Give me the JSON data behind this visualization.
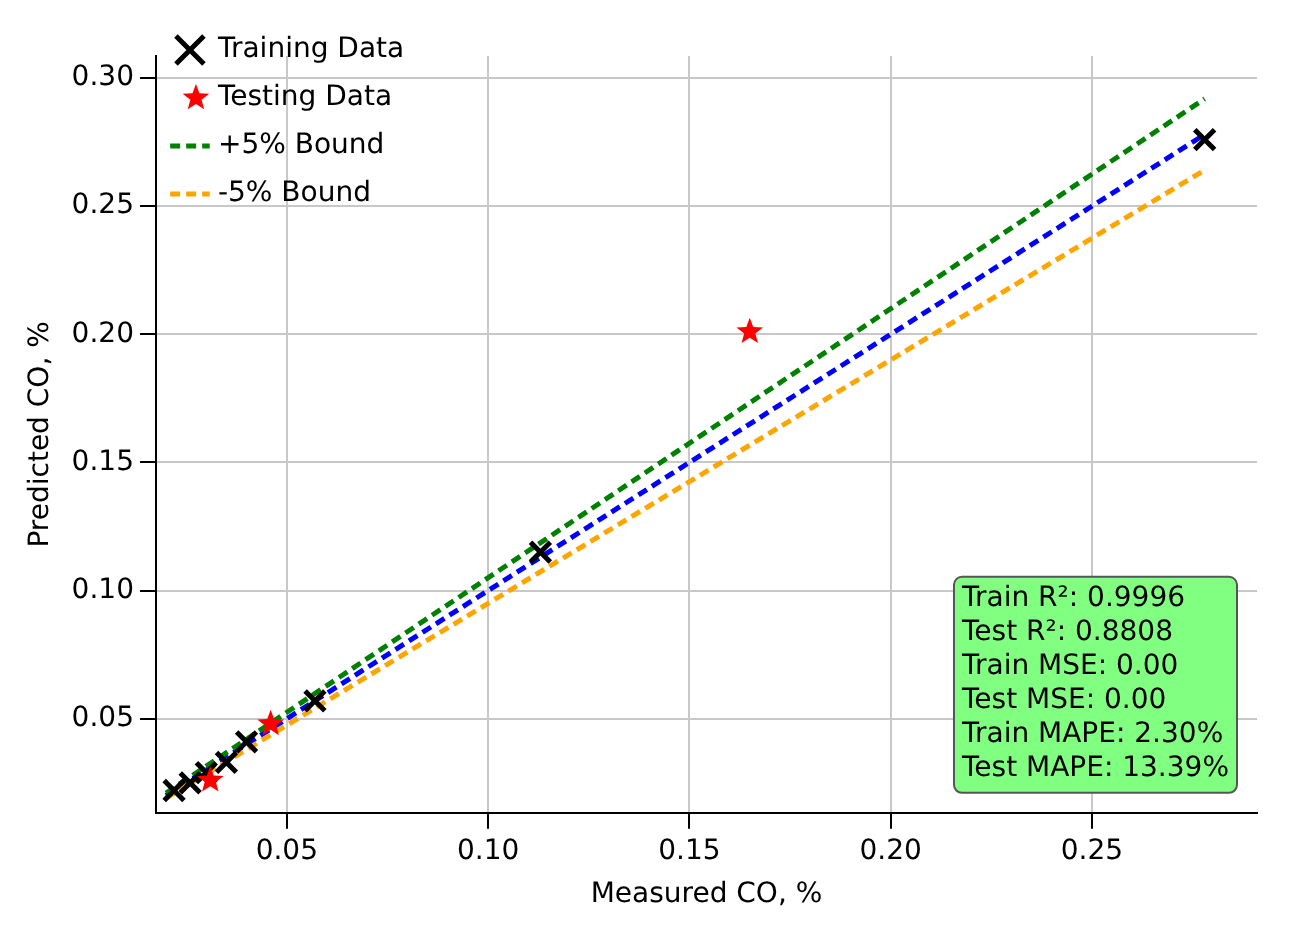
{
  "chart_data": {
    "type": "scatter",
    "xlabel": "Measured CO, %",
    "ylabel": "Predicted CO, %",
    "xlim": [
      0.0175,
      0.291
    ],
    "xticks": [
      {
        "value": 0.05,
        "label": "0.05"
      },
      {
        "value": 0.1,
        "label": "0.10"
      },
      {
        "value": 0.15,
        "label": "0.15"
      },
      {
        "value": 0.2,
        "label": "0.20"
      },
      {
        "value": 0.25,
        "label": "0.25"
      }
    ],
    "ylim": [
      0.0133,
      0.3086
    ],
    "yticks": [
      {
        "value": 0.05,
        "label": "0.05"
      },
      {
        "value": 0.1,
        "label": "0.10"
      },
      {
        "value": 0.15,
        "label": "0.15"
      },
      {
        "value": 0.2,
        "label": "0.20"
      },
      {
        "value": 0.25,
        "label": "0.25"
      },
      {
        "value": 0.3,
        "label": "0.30"
      }
    ],
    "grid": true,
    "legend": "top left",
    "series": [
      {
        "name": "Training Data",
        "color": "#000000",
        "marker": "cross",
        "x": [
          0.022,
          0.026,
          0.03,
          0.035,
          0.04,
          0.057,
          0.113,
          0.278
        ],
        "values": [
          0.022,
          0.025,
          0.029,
          0.033,
          0.041,
          0.057,
          0.115,
          0.276
        ]
      },
      {
        "name": "Testing Data",
        "color": "#ff0000",
        "marker": "star",
        "x": [
          0.031,
          0.046,
          0.165
        ],
        "values": [
          0.026,
          0.048,
          0.201
        ]
      },
      {
        "name": "+5% Bound",
        "type": "line",
        "color": "#008000",
        "line_style": "dashed",
        "marker": "none",
        "x": [
          0.02,
          0.278
        ],
        "values": [
          0.021,
          0.2919
        ]
      },
      {
        "name": "-5% Bound",
        "type": "line",
        "color": "#ffa500",
        "line_style": "dashed",
        "marker": "none",
        "x": [
          0.02,
          0.278
        ],
        "values": [
          0.019,
          0.2641
        ]
      },
      {
        "type": "line",
        "color": "#0000ff",
        "line_style": "dashed",
        "marker": "none",
        "x": [
          0.02,
          0.278
        ],
        "values": [
          0.02,
          0.278
        ]
      }
    ],
    "annotations": [
      "Train R²: 0.9996",
      "Test R²: 0.8808",
      "Train MSE: 0.00",
      "Test MSE: 0.00",
      "Train MAPE: 2.30%",
      "Test MAPE: 13.39%"
    ]
  }
}
